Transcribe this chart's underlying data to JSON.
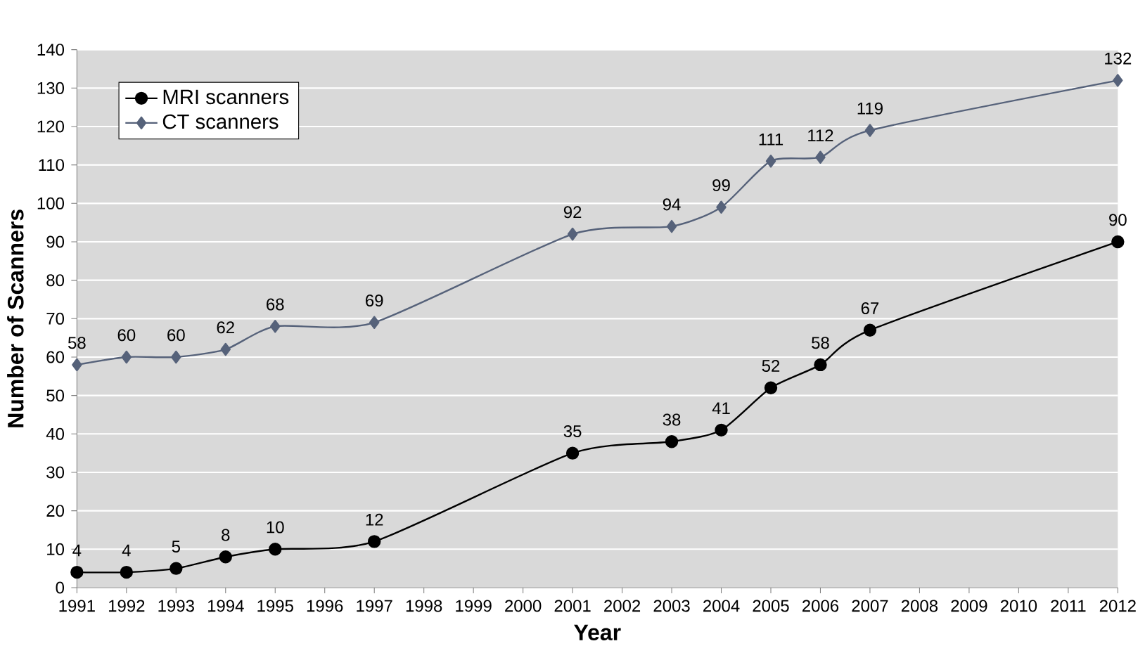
{
  "chart_data": {
    "type": "line",
    "xlabel": "Year",
    "ylabel": "Number of Scanners",
    "x": [
      1991,
      1992,
      1993,
      1994,
      1995,
      1997,
      2001,
      2003,
      2004,
      2005,
      2006,
      2007,
      2012
    ],
    "series": [
      {
        "name": "MRI scanners",
        "color": "#000000",
        "marker": "circle",
        "values": [
          4,
          4,
          5,
          8,
          10,
          12,
          35,
          38,
          41,
          52,
          58,
          67,
          90
        ]
      },
      {
        "name": "CT scanners",
        "color": "#56627a",
        "marker": "diamond",
        "values": [
          58,
          60,
          60,
          62,
          68,
          69,
          92,
          94,
          99,
          111,
          112,
          119,
          132
        ]
      }
    ],
    "xlim": [
      1991,
      2012
    ],
    "xticks": [
      1991,
      1992,
      1993,
      1994,
      1995,
      1996,
      1997,
      1998,
      1999,
      2000,
      2001,
      2002,
      2003,
      2004,
      2005,
      2006,
      2007,
      2008,
      2009,
      2010,
      2011,
      2012
    ],
    "ylim": [
      0,
      140
    ],
    "yticks": [
      0,
      10,
      20,
      30,
      40,
      50,
      60,
      70,
      80,
      90,
      100,
      110,
      120,
      130,
      140
    ],
    "grid": "y",
    "legend": "top left",
    "data_labels": true,
    "line_style": "solid"
  }
}
